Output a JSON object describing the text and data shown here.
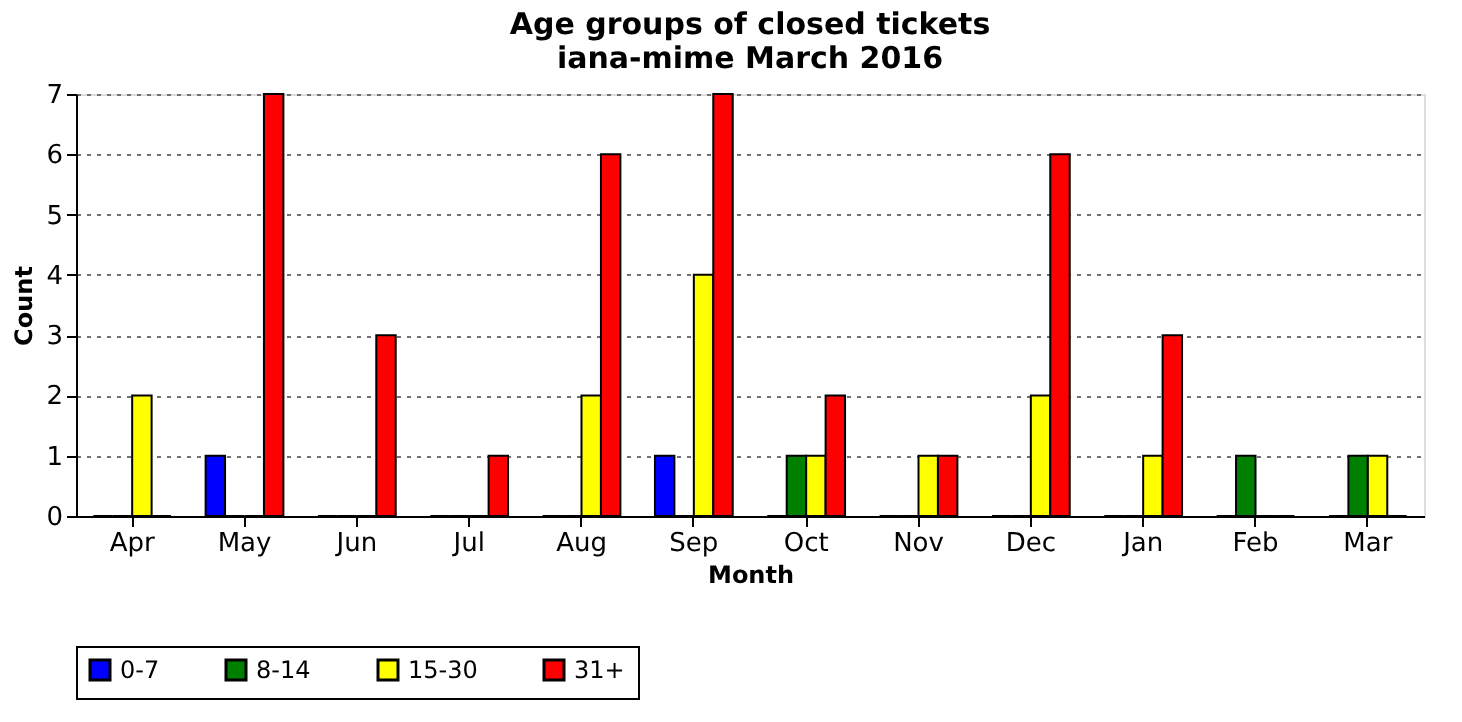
{
  "chart_data": {
    "type": "bar",
    "title": [
      "Age groups of closed tickets",
      "iana-mime March 2016"
    ],
    "xlabel": "Month",
    "ylabel": "Count",
    "categories": [
      "Apr",
      "May",
      "Jun",
      "Jul",
      "Aug",
      "Sep",
      "Oct",
      "Nov",
      "Dec",
      "Jan",
      "Feb",
      "Mar"
    ],
    "series": [
      {
        "name": "0-7",
        "color": "#0000ff",
        "values": [
          0,
          1,
          0,
          0,
          0,
          1,
          0,
          0,
          0,
          0,
          0,
          0
        ]
      },
      {
        "name": "8-14",
        "color": "#008000",
        "values": [
          0,
          0,
          0,
          0,
          0,
          0,
          1,
          0,
          0,
          0,
          1,
          1
        ]
      },
      {
        "name": "15-30",
        "color": "#ffff00",
        "values": [
          2,
          0,
          0,
          0,
          2,
          4,
          1,
          1,
          2,
          1,
          0,
          1
        ]
      },
      {
        "name": "31+",
        "color": "#ff0000",
        "values": [
          0,
          7,
          3,
          1,
          6,
          7,
          2,
          1,
          6,
          3,
          0,
          0
        ]
      }
    ],
    "ylim": [
      0,
      7
    ],
    "yticks": [
      0,
      1,
      2,
      3,
      4,
      5,
      6,
      7
    ],
    "grid": "y",
    "legend": "bottom"
  }
}
